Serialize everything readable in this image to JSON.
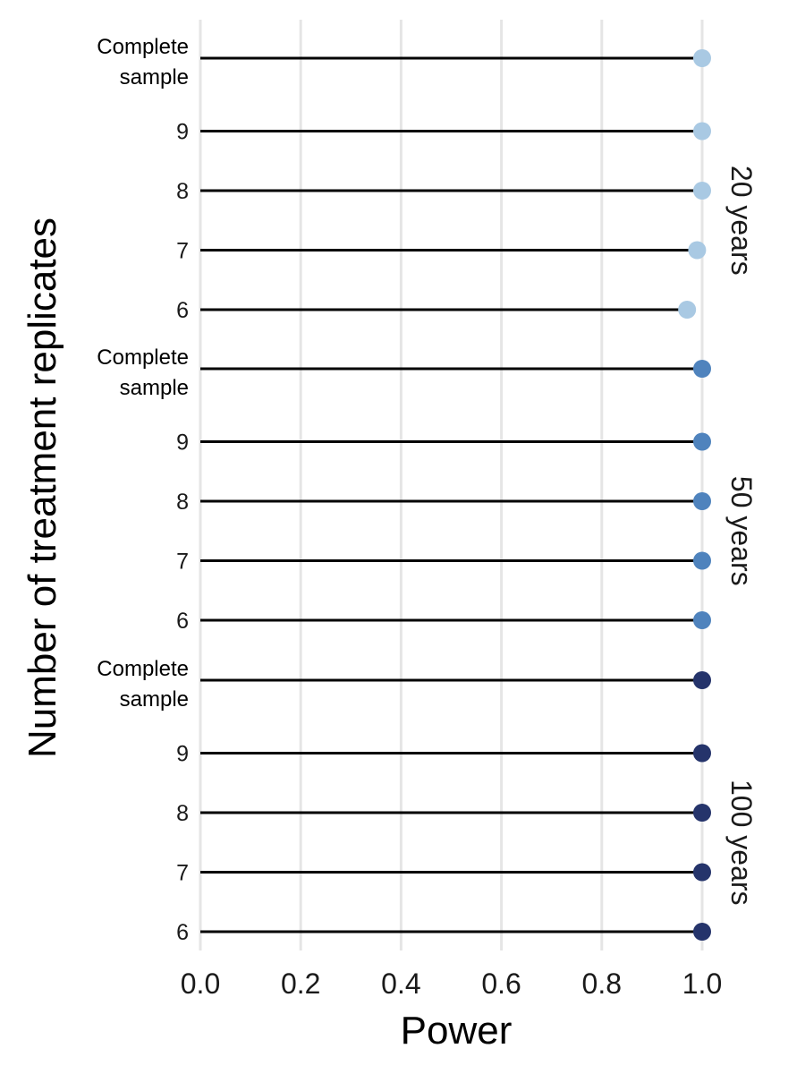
{
  "chart_data": {
    "type": "lollipop",
    "xlabel": "Power",
    "ylabel": "Number of treatment replicates",
    "xlim": [
      0,
      1
    ],
    "xticks": [
      "0.0",
      "0.2",
      "0.4",
      "0.6",
      "0.8",
      "1.0"
    ],
    "grid": "vertical major gridlines",
    "categories": [
      "Complete sample",
      "9",
      "8",
      "7",
      "6"
    ],
    "panels": [
      {
        "label": "20 years",
        "color": "#a9c9e3",
        "rows": [
          {
            "category": "Complete sample",
            "value": 1.0
          },
          {
            "category": "9",
            "value": 1.0
          },
          {
            "category": "8",
            "value": 1.0
          },
          {
            "category": "7",
            "value": 0.99
          },
          {
            "category": "6",
            "value": 0.97
          }
        ]
      },
      {
        "label": "50 years",
        "color": "#4f83bd",
        "rows": [
          {
            "category": "Complete sample",
            "value": 1.0
          },
          {
            "category": "9",
            "value": 1.0
          },
          {
            "category": "8",
            "value": 1.0
          },
          {
            "category": "7",
            "value": 1.0
          },
          {
            "category": "6",
            "value": 1.0
          }
        ]
      },
      {
        "label": "100 years",
        "color": "#25346b",
        "rows": [
          {
            "category": "Complete sample",
            "value": 1.0
          },
          {
            "category": "9",
            "value": 1.0
          },
          {
            "category": "8",
            "value": 1.0
          },
          {
            "category": "7",
            "value": 1.0
          },
          {
            "category": "6",
            "value": 1.0
          }
        ]
      }
    ]
  }
}
